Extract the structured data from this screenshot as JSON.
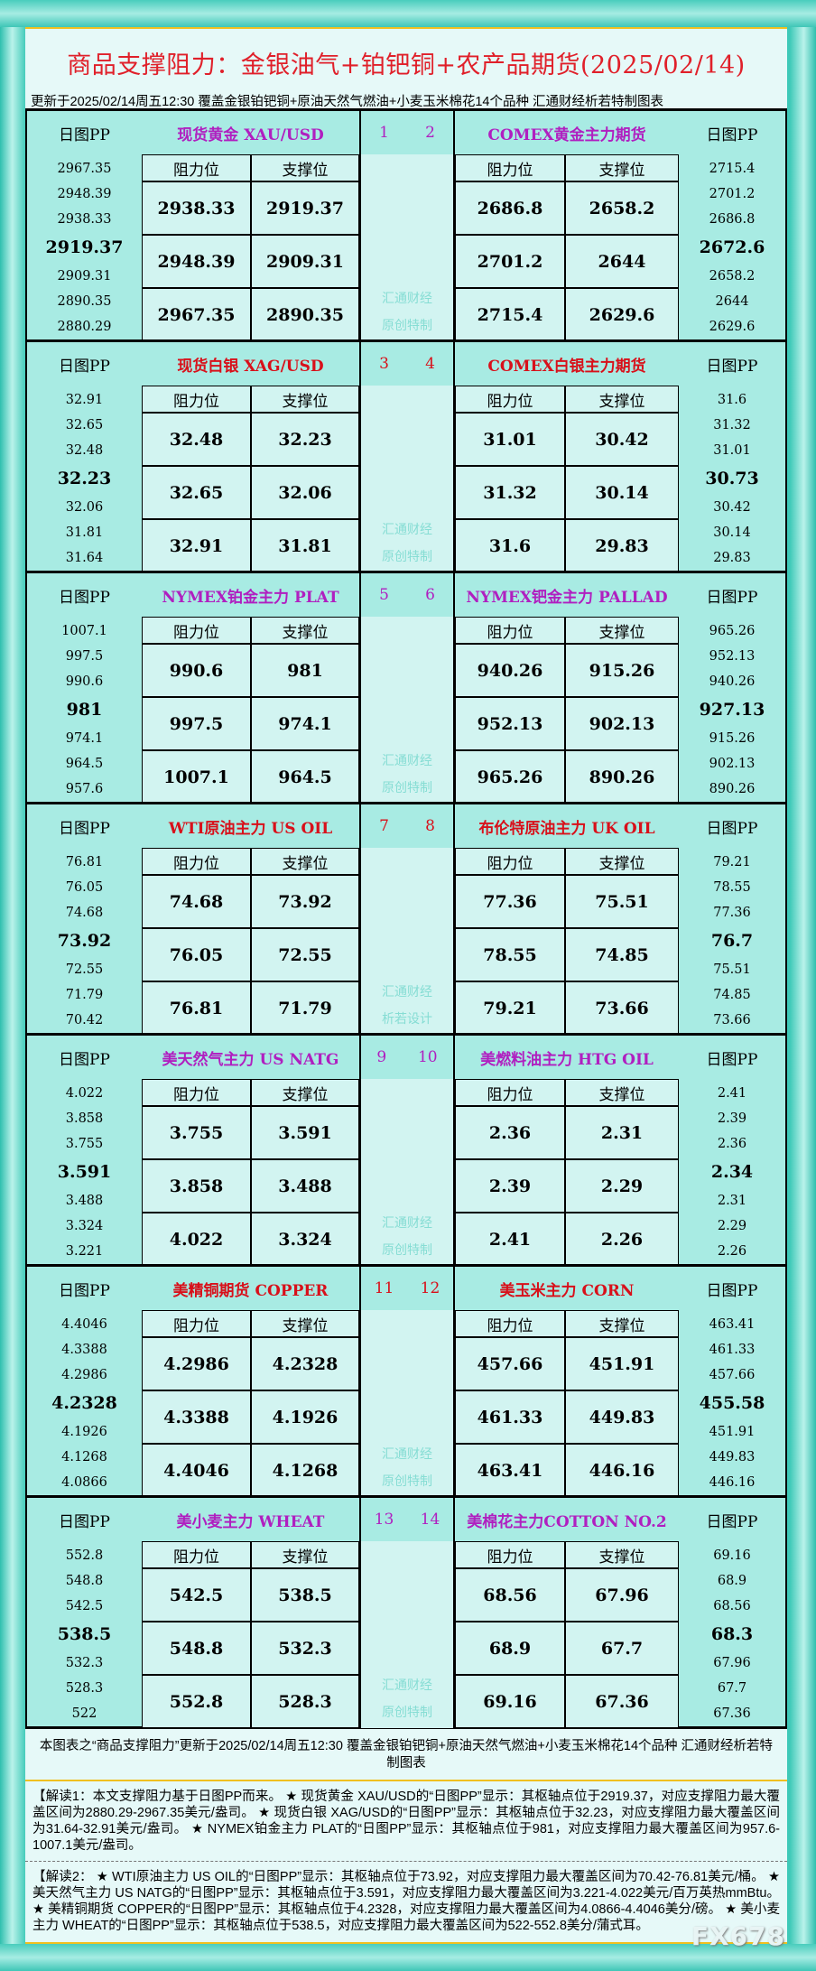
{
  "title": "商品支撑阻力：金银油气+铂钯铜+农产品期货(2025/02/14)",
  "subtitle": "更新于2025/02/14周五12:30  覆盖金银铂钯铜+原油天然气燃油+小麦玉米棉花14个品种  汇通财经析若特制图表",
  "labels": {
    "pp": "日图PP",
    "resistance": "阻力位",
    "support": "支撑位"
  },
  "colors": {
    "purple": "#b01fc0",
    "red": "#d8101a"
  },
  "sections": [
    {
      "nums": [
        "1",
        "2"
      ],
      "color": "purple",
      "watermark": [
        "汇通财经",
        "原创特制"
      ],
      "left": {
        "name": "现货黄金 XAU/USD",
        "pp": [
          "2967.35",
          "2948.39",
          "2938.33",
          "2919.37",
          "2909.31",
          "2890.35",
          "2880.29"
        ],
        "rows": [
          [
            "2938.33",
            "2919.37"
          ],
          [
            "2948.39",
            "2909.31"
          ],
          [
            "2967.35",
            "2890.35"
          ]
        ]
      },
      "right": {
        "name": "COMEX黄金主力期货",
        "pp": [
          "2715.4",
          "2701.2",
          "2686.8",
          "2672.6",
          "2658.2",
          "2644",
          "2629.6"
        ],
        "rows": [
          [
            "2686.8",
            "2658.2"
          ],
          [
            "2701.2",
            "2644"
          ],
          [
            "2715.4",
            "2629.6"
          ]
        ]
      }
    },
    {
      "nums": [
        "3",
        "4"
      ],
      "color": "red",
      "watermark": [
        "汇通财经",
        "原创特制"
      ],
      "left": {
        "name": "现货白银 XAG/USD",
        "pp": [
          "32.91",
          "32.65",
          "32.48",
          "32.23",
          "32.06",
          "31.81",
          "31.64"
        ],
        "rows": [
          [
            "32.48",
            "32.23"
          ],
          [
            "32.65",
            "32.06"
          ],
          [
            "32.91",
            "31.81"
          ]
        ]
      },
      "right": {
        "name": "COMEX白银主力期货",
        "pp": [
          "31.6",
          "31.32",
          "31.01",
          "30.73",
          "30.42",
          "30.14",
          "29.83"
        ],
        "rows": [
          [
            "31.01",
            "30.42"
          ],
          [
            "31.32",
            "30.14"
          ],
          [
            "31.6",
            "29.83"
          ]
        ]
      }
    },
    {
      "nums": [
        "5",
        "6"
      ],
      "color": "purple",
      "watermark": [
        "汇通财经",
        "原创特制"
      ],
      "left": {
        "name": "NYMEX铂金主力 PLAT",
        "pp": [
          "1007.1",
          "997.5",
          "990.6",
          "981",
          "974.1",
          "964.5",
          "957.6"
        ],
        "rows": [
          [
            "990.6",
            "981"
          ],
          [
            "997.5",
            "974.1"
          ],
          [
            "1007.1",
            "964.5"
          ]
        ]
      },
      "right": {
        "name": "NYMEX钯金主力 PALLAD",
        "pp": [
          "965.26",
          "952.13",
          "940.26",
          "927.13",
          "915.26",
          "902.13",
          "890.26"
        ],
        "rows": [
          [
            "940.26",
            "915.26"
          ],
          [
            "952.13",
            "902.13"
          ],
          [
            "965.26",
            "890.26"
          ]
        ]
      }
    },
    {
      "nums": [
        "7",
        "8"
      ],
      "color": "red",
      "watermark": [
        "汇通财经",
        "析若设计"
      ],
      "left": {
        "name": "WTI原油主力 US OIL",
        "pp": [
          "76.81",
          "76.05",
          "74.68",
          "73.92",
          "72.55",
          "71.79",
          "70.42"
        ],
        "rows": [
          [
            "74.68",
            "73.92"
          ],
          [
            "76.05",
            "72.55"
          ],
          [
            "76.81",
            "71.79"
          ]
        ]
      },
      "right": {
        "name": "布伦特原油主力 UK OIL",
        "pp": [
          "79.21",
          "78.55",
          "77.36",
          "76.7",
          "75.51",
          "74.85",
          "73.66"
        ],
        "rows": [
          [
            "77.36",
            "75.51"
          ],
          [
            "78.55",
            "74.85"
          ],
          [
            "79.21",
            "73.66"
          ]
        ]
      }
    },
    {
      "nums": [
        "9",
        "10"
      ],
      "color": "purple",
      "watermark": [
        "汇通财经",
        "原创特制"
      ],
      "left": {
        "name": "美天然气主力 US NATG",
        "pp": [
          "4.022",
          "3.858",
          "3.755",
          "3.591",
          "3.488",
          "3.324",
          "3.221"
        ],
        "rows": [
          [
            "3.755",
            "3.591"
          ],
          [
            "3.858",
            "3.488"
          ],
          [
            "4.022",
            "3.324"
          ]
        ]
      },
      "right": {
        "name": "美燃料油主力 HTG OIL",
        "pp": [
          "2.41",
          "2.39",
          "2.36",
          "2.34",
          "2.31",
          "2.29",
          "2.26"
        ],
        "rows": [
          [
            "2.36",
            "2.31"
          ],
          [
            "2.39",
            "2.29"
          ],
          [
            "2.41",
            "2.26"
          ]
        ]
      }
    },
    {
      "nums": [
        "11",
        "12"
      ],
      "color": "red",
      "watermark": [
        "汇通财经",
        "原创特制"
      ],
      "left": {
        "name": "美精铜期货 COPPER",
        "pp": [
          "4.4046",
          "4.3388",
          "4.2986",
          "4.2328",
          "4.1926",
          "4.1268",
          "4.0866"
        ],
        "rows": [
          [
            "4.2986",
            "4.2328"
          ],
          [
            "4.3388",
            "4.1926"
          ],
          [
            "4.4046",
            "4.1268"
          ]
        ]
      },
      "right": {
        "name": "美玉米主力 CORN",
        "pp": [
          "463.41",
          "461.33",
          "457.66",
          "455.58",
          "451.91",
          "449.83",
          "446.16"
        ],
        "rows": [
          [
            "457.66",
            "451.91"
          ],
          [
            "461.33",
            "449.83"
          ],
          [
            "463.41",
            "446.16"
          ]
        ]
      }
    },
    {
      "nums": [
        "13",
        "14"
      ],
      "color": "purple",
      "watermark": [
        "汇通财经",
        "原创特制"
      ],
      "left": {
        "name": "美小麦主力 WHEAT",
        "pp": [
          "552.8",
          "548.8",
          "542.5",
          "538.5",
          "532.3",
          "528.3",
          "522"
        ],
        "rows": [
          [
            "542.5",
            "538.5"
          ],
          [
            "548.8",
            "532.3"
          ],
          [
            "552.8",
            "528.3"
          ]
        ]
      },
      "right": {
        "name": "美棉花主力COTTON NO.2",
        "pp": [
          "69.16",
          "68.9",
          "68.56",
          "68.3",
          "67.96",
          "67.7",
          "67.36"
        ],
        "rows": [
          [
            "68.56",
            "67.96"
          ],
          [
            "68.9",
            "67.7"
          ],
          [
            "69.16",
            "67.36"
          ]
        ]
      }
    }
  ],
  "note": "本图表之“商品支撑阻力”更新于2025/02/14周五12:30 覆盖金银铂钯铜+原油天然气燃油+小麦玉米棉花14个品种 汇通财经析若特制图表",
  "interp1": "【解读1：本文支撑阻力基于日图PP而来。 ★ 现货黄金 XAU/USD的“日图PP”显示：其枢轴点位于2919.37，对应支撑阻力最大覆盖区间为2880.29-2967.35美元/盎司。 ★ 现货白银 XAG/USD的“日图PP”显示：其枢轴点位于32.23，对应支撑阻力最大覆盖区间为31.64-32.91美元/盎司。 ★ NYMEX铂金主力 PLAT的“日图PP”显示：其枢轴点位于981，对应支撑阻力最大覆盖区间为957.6-1007.1美元/盎司。",
  "interp2": "【解读2： ★ WTI原油主力 US OIL的“日图PP”显示：其枢轴点位于73.92，对应支撑阻力最大覆盖区间为70.42-76.81美元/桶。 ★ 美天然气主力 US NATG的“日图PP”显示：其枢轴点位于3.591，对应支撑阻力最大覆盖区间为3.221-4.022美元/百万英热mmBtu。 ★ 美精铜期货 COPPER的“日图PP”显示：其枢轴点位于4.2328，对应支撑阻力最大覆盖区间为4.0866-4.4046美分/磅。 ★ 美小麦主力 WHEAT的“日图PP”显示：其枢轴点位于538.5，对应支撑阻力最大覆盖区间为522-552.8美分/蒲式耳。",
  "watermark": "FX678"
}
